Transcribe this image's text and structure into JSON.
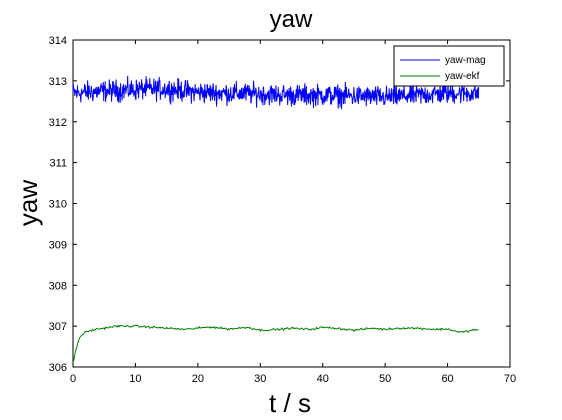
{
  "chart_data": {
    "type": "line",
    "title": "yaw",
    "xlabel": "t / s",
    "ylabel": "yaw",
    "xlim": [
      0,
      70
    ],
    "ylim": [
      306,
      314
    ],
    "xticks": [
      0,
      10,
      20,
      30,
      40,
      50,
      60,
      70
    ],
    "yticks": [
      306,
      307,
      308,
      309,
      310,
      311,
      312,
      313,
      314
    ],
    "grid": false,
    "legend_position": "top-right",
    "series": [
      {
        "name": "yaw-mag",
        "color": "#0000ff",
        "noise": 0.13,
        "x": [
          0,
          5,
          10,
          11,
          15,
          20,
          25,
          30,
          35,
          40,
          45,
          50,
          55,
          60,
          65
        ],
        "y": [
          312.7,
          312.75,
          312.78,
          312.8,
          312.8,
          312.72,
          312.7,
          312.68,
          312.65,
          312.65,
          312.63,
          312.6,
          312.65,
          312.7,
          312.7
        ]
      },
      {
        "name": "yaw-ekf",
        "color": "#008000",
        "noise": 0.012,
        "x": [
          0,
          0.3,
          0.7,
          1,
          1.5,
          2,
          3,
          4,
          5,
          6,
          7,
          8,
          10,
          12,
          15,
          18,
          20,
          22,
          25,
          28,
          30,
          33,
          35,
          38,
          40,
          42,
          45,
          48,
          50,
          52,
          55,
          58,
          60,
          62,
          63,
          64,
          65
        ],
        "y": [
          306.1,
          306.3,
          306.55,
          306.7,
          306.8,
          306.85,
          306.9,
          306.93,
          306.95,
          306.98,
          307.0,
          307.0,
          307.0,
          306.98,
          306.95,
          306.92,
          306.95,
          306.98,
          306.93,
          306.97,
          306.9,
          306.92,
          306.95,
          306.92,
          306.97,
          306.95,
          306.9,
          306.95,
          306.92,
          306.95,
          306.95,
          306.92,
          306.93,
          306.85,
          306.87,
          306.9,
          306.92
        ]
      }
    ]
  }
}
